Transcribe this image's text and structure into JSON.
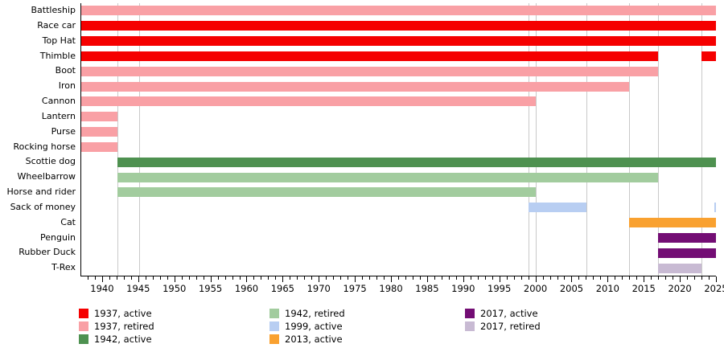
{
  "chart_data": {
    "type": "gantt",
    "description": "Timeline of Monopoly tokens by year, colored by introduction year and active/retired status",
    "x_axis": {
      "min": 1937,
      "max": 2025,
      "minor_tick_step": 1,
      "major_tick_step": 5,
      "tick_label_years": [
        1940,
        1945,
        1950,
        1955,
        1960,
        1965,
        1970,
        1975,
        1980,
        1985,
        1990,
        1995,
        2000,
        2005,
        2010,
        2015,
        2020,
        2025
      ]
    },
    "gridline_years": [
      1942,
      1945,
      1999,
      2000,
      2007,
      2013,
      2017,
      2023
    ],
    "colors": {
      "1937_active": "#f50000",
      "1937_retired": "#f9a0a5",
      "1942_active": "#4e9150",
      "1942_retired": "#a2cc9e",
      "1999_active": "#b8cef2",
      "2013_active": "#f9a130",
      "2017_active": "#730d74",
      "2017_retired": "#c8bad3"
    },
    "rows": [
      {
        "label": "Battleship",
        "segments": [
          {
            "start": 1937,
            "end": 2025,
            "status": "1937_retired"
          }
        ]
      },
      {
        "label": "Race car",
        "segments": [
          {
            "start": 1937,
            "end": 2025,
            "status": "1937_active"
          }
        ]
      },
      {
        "label": "Top Hat",
        "segments": [
          {
            "start": 1937,
            "end": 2025,
            "status": "1937_active"
          }
        ]
      },
      {
        "label": "Thimble",
        "segments": [
          {
            "start": 1937,
            "end": 2017,
            "status": "1937_active"
          },
          {
            "start": 2023,
            "end": 2025,
            "status": "1937_active"
          }
        ]
      },
      {
        "label": "Boot",
        "segments": [
          {
            "start": 1937,
            "end": 2017,
            "status": "1937_retired"
          }
        ]
      },
      {
        "label": "Iron",
        "segments": [
          {
            "start": 1937,
            "end": 2013,
            "status": "1937_retired"
          }
        ]
      },
      {
        "label": "Cannon",
        "segments": [
          {
            "start": 1937,
            "end": 2000,
            "status": "1937_retired"
          }
        ]
      },
      {
        "label": "Lantern",
        "segments": [
          {
            "start": 1937,
            "end": 1942,
            "status": "1937_retired"
          }
        ]
      },
      {
        "label": "Purse",
        "segments": [
          {
            "start": 1937,
            "end": 1942,
            "status": "1937_retired"
          }
        ]
      },
      {
        "label": "Rocking horse",
        "segments": [
          {
            "start": 1937,
            "end": 1942,
            "status": "1937_retired"
          }
        ]
      },
      {
        "label": "Scottie dog",
        "segments": [
          {
            "start": 1942,
            "end": 2025,
            "status": "1942_active"
          }
        ]
      },
      {
        "label": "Wheelbarrow",
        "segments": [
          {
            "start": 1942,
            "end": 2017,
            "status": "1942_retired"
          }
        ]
      },
      {
        "label": "Horse and rider",
        "segments": [
          {
            "start": 1942,
            "end": 2000,
            "status": "1942_retired"
          }
        ]
      },
      {
        "label": "Sack of money",
        "segments": [
          {
            "start": 1999,
            "end": 2007,
            "status": "1999_active"
          },
          {
            "start": 2024.8,
            "end": 2025,
            "status": "1999_active"
          }
        ]
      },
      {
        "label": "Cat",
        "segments": [
          {
            "start": 2013,
            "end": 2025,
            "status": "2013_active"
          }
        ]
      },
      {
        "label": "Penguin",
        "segments": [
          {
            "start": 2017,
            "end": 2025,
            "status": "2017_active"
          }
        ]
      },
      {
        "label": "Rubber Duck",
        "segments": [
          {
            "start": 2017,
            "end": 2025,
            "status": "2017_active"
          }
        ]
      },
      {
        "label": "T-Rex",
        "segments": [
          {
            "start": 2017,
            "end": 2023,
            "status": "2017_retired"
          }
        ]
      }
    ],
    "legend": {
      "position": "bottom",
      "columns": [
        [
          {
            "label": "1937, active",
            "status": "1937_active"
          },
          {
            "label": "1937, retired",
            "status": "1937_retired"
          },
          {
            "label": "1942, active",
            "status": "1942_active"
          }
        ],
        [
          {
            "label": "1942, retired",
            "status": "1942_retired"
          },
          {
            "label": "1999, active",
            "status": "1999_active"
          },
          {
            "label": "2013, active",
            "status": "2013_active"
          }
        ],
        [
          {
            "label": "2017, active",
            "status": "2017_active"
          },
          {
            "label": "2017, retired",
            "status": "2017_retired"
          }
        ]
      ]
    }
  }
}
